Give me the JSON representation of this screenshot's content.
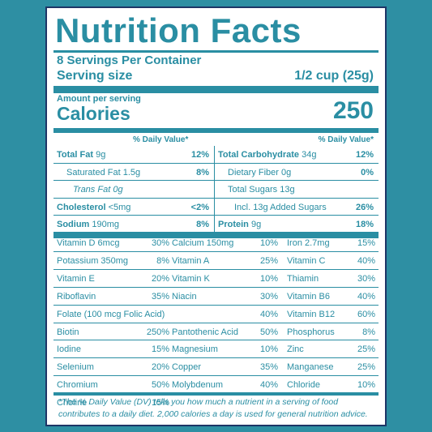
{
  "label": {
    "title": "Nutrition Facts",
    "servings_per_container": "8 Servings Per Container",
    "serving_size_label": "Serving size",
    "serving_size_value": "1/2 cup (25g)",
    "amount_per_serving": "Amount per serving",
    "calories_label": "Calories",
    "calories_value": "250",
    "dv_header": "% Daily Value*"
  },
  "left_rows": [
    {
      "name": "Total Fat",
      "amount": " 9g",
      "pct": "12%",
      "bold": true,
      "indent": 0
    },
    {
      "name": "Saturated Fat",
      "amount": " 1.5g",
      "pct": "8%",
      "bold": false,
      "indent": 1
    },
    {
      "name": "Trans Fat",
      "amount": " 0g",
      "pct": "",
      "bold": false,
      "indent": 2,
      "italic": true
    },
    {
      "name": "Cholesterol",
      "amount": " <5mg",
      "pct": "<2%",
      "bold": true,
      "indent": 0
    },
    {
      "name": "Sodium",
      "amount": " 190mg",
      "pct": "8%",
      "bold": true,
      "indent": 0
    }
  ],
  "right_rows": [
    {
      "name": "Total Carbohydrate",
      "amount": " 34g",
      "pct": "12%",
      "bold": true,
      "indent": 0
    },
    {
      "name": "Dietary Fiber",
      "amount": " 0g",
      "pct": "0%",
      "bold": false,
      "indent": 1
    },
    {
      "name": "Total Sugars",
      "amount": " 13g",
      "pct": "",
      "bold": false,
      "indent": 1
    },
    {
      "name": "Incl. 13g Added Sugars",
      "amount": "",
      "pct": "26%",
      "bold": false,
      "indent": 2
    },
    {
      "name": "Protein",
      "amount": " 9g",
      "pct": "18%",
      "bold": true,
      "indent": 0
    }
  ],
  "vitamins": [
    [
      {
        "name": "Vitamin D 6mcg",
        "pct": "30%"
      },
      {
        "name": "Calcium 150mg",
        "pct": "10%"
      },
      {
        "name": "Iron 2.7mg",
        "pct": "15%"
      }
    ],
    [
      {
        "name": "Potassium 350mg",
        "pct": "8%"
      },
      {
        "name": "Vitamin A",
        "pct": "25%"
      },
      {
        "name": "Vitamin C",
        "pct": "40%"
      }
    ],
    [
      {
        "name": "Vitamin E",
        "pct": "20%"
      },
      {
        "name": "Vitamin K",
        "pct": "10%"
      },
      {
        "name": "Thiamin",
        "pct": "30%"
      }
    ],
    [
      {
        "name": "Riboflavin",
        "pct": "35%"
      },
      {
        "name": "Niacin",
        "pct": "30%"
      },
      {
        "name": "Vitamin B6",
        "pct": "40%"
      }
    ],
    [
      {
        "name": "Folate (100 mcg Folic Acid)",
        "pct": "40%",
        "span": true
      },
      {
        "name": "Vitamin B12",
        "pct": "60%"
      }
    ],
    [
      {
        "name": "Biotin",
        "pct": "250%"
      },
      {
        "name": "Pantothenic Acid",
        "pct": "50%"
      },
      {
        "name": "Phosphorus",
        "pct": "8%"
      }
    ],
    [
      {
        "name": "Iodine",
        "pct": "15%"
      },
      {
        "name": "Magnesium",
        "pct": "10%"
      },
      {
        "name": "Zinc",
        "pct": "25%"
      }
    ],
    [
      {
        "name": "Selenium",
        "pct": "20%"
      },
      {
        "name": "Copper",
        "pct": "35%"
      },
      {
        "name": "Manganese",
        "pct": "25%"
      }
    ],
    [
      {
        "name": "Chromium",
        "pct": "50%"
      },
      {
        "name": "Molybdenum",
        "pct": "40%"
      },
      {
        "name": "Chloride",
        "pct": "10%"
      }
    ],
    [
      {
        "name": "Choline",
        "pct": "15%"
      }
    ]
  ],
  "footnote": "*The % Daily Value (DV) tells you how much a nutrient in a serving of food contributes to a daily diet. 2,000 calories a day is used for general nutrition advice.",
  "colors": {
    "background": "#2e8fa3",
    "text": "#2a8ea3",
    "border": "#1d3566",
    "panel": "#ffffff"
  }
}
